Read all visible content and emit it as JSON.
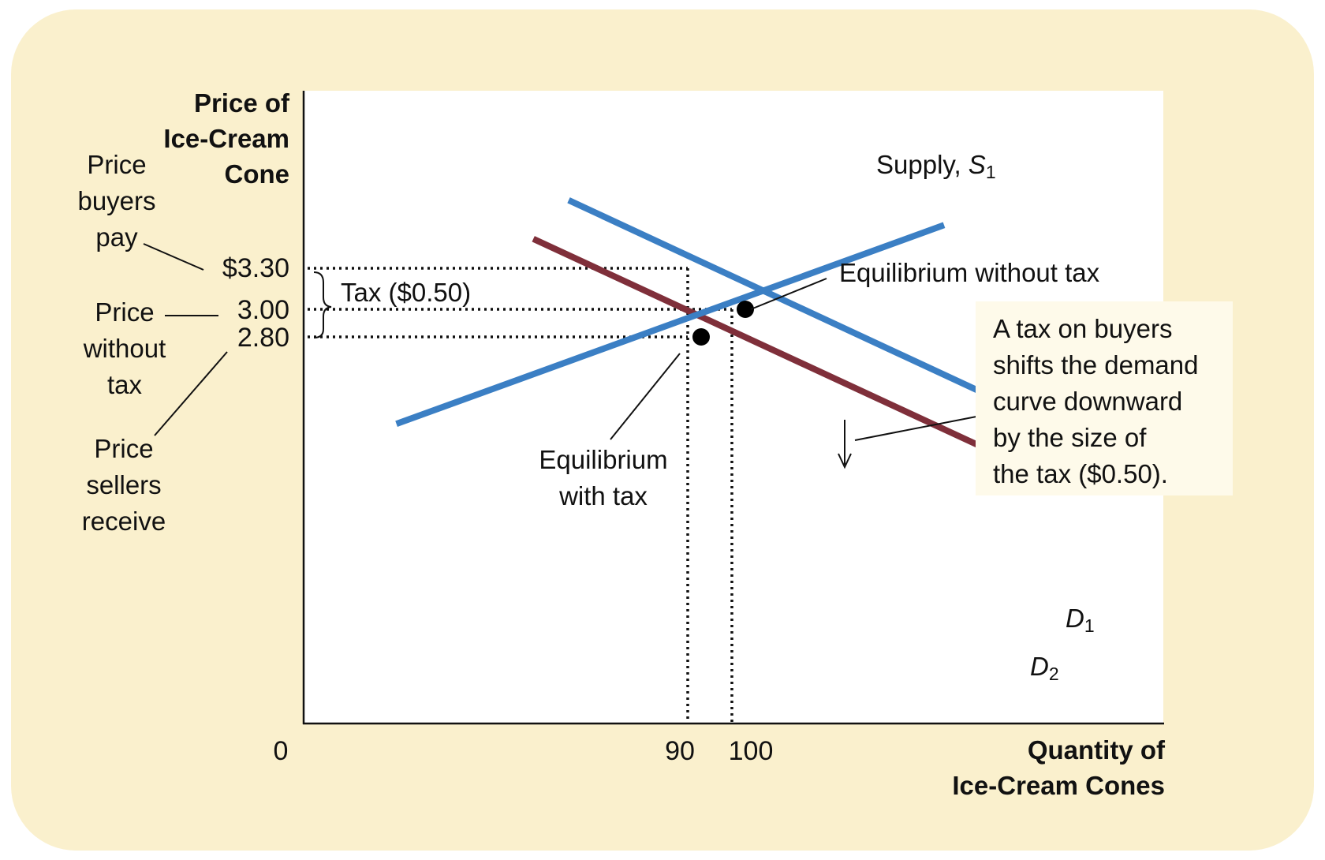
{
  "colors": {
    "card": "#faf0cd",
    "supply": "#3b7fc4",
    "demand1": "#3b7fc4",
    "demand2": "#7f2f3a",
    "text": "#111111"
  },
  "y_axis_title": [
    "Price of",
    "Ice-Cream",
    "Cone"
  ],
  "x_axis_title": [
    "Quantity of",
    "Ice-Cream Cones"
  ],
  "y_ticks": {
    "p330": "$3.30",
    "p300": "3.00",
    "p280": "2.80"
  },
  "x_ticks": {
    "q0": "0",
    "q90": "90",
    "q100": "100"
  },
  "side_labels": {
    "buyers": [
      "Price",
      "buyers",
      "pay"
    ],
    "without": [
      "Price",
      "without",
      "tax"
    ],
    "sellers": [
      "Price",
      "sellers",
      "receive"
    ]
  },
  "tax_label": "Tax ($0.50)",
  "supply_label": {
    "main": "Supply, ",
    "letter": "S",
    "sub": "1"
  },
  "d1_label": {
    "letter": "D",
    "sub": "1"
  },
  "d2_label": {
    "letter": "D",
    "sub": "2"
  },
  "eq_without_label": "Equilibrium without tax",
  "eq_with_label": [
    "Equilibrium",
    "with tax"
  ],
  "note": [
    "A tax on buyers",
    "shifts the demand",
    "curve downward",
    "by the size of",
    "the tax ($0.50)."
  ],
  "chart_data": {
    "type": "line",
    "xlabel": "Quantity of Ice-Cream Cones",
    "ylabel": "Price of Ice-Cream Cone",
    "x_ticks": [
      0,
      90,
      100
    ],
    "y_ticks": [
      2.8,
      3.0,
      3.3
    ],
    "series": [
      {
        "name": "Supply, S1",
        "x": [
          21,
          145
        ],
        "y": [
          2.17,
          3.61
        ]
      },
      {
        "name": "D1",
        "x": [
          60,
          175
        ],
        "y": [
          3.79,
          2.08
        ]
      },
      {
        "name": "D2",
        "x": [
          52,
          168
        ],
        "y": [
          3.51,
          1.79
        ]
      }
    ],
    "equilibria": [
      {
        "label": "Equilibrium without tax",
        "quantity": 100,
        "price": 3.0
      },
      {
        "label": "Equilibrium with tax",
        "quantity": 90,
        "price_buyers_pay": 3.3,
        "price_sellers_receive": 2.8
      }
    ],
    "tax": 0.5
  }
}
